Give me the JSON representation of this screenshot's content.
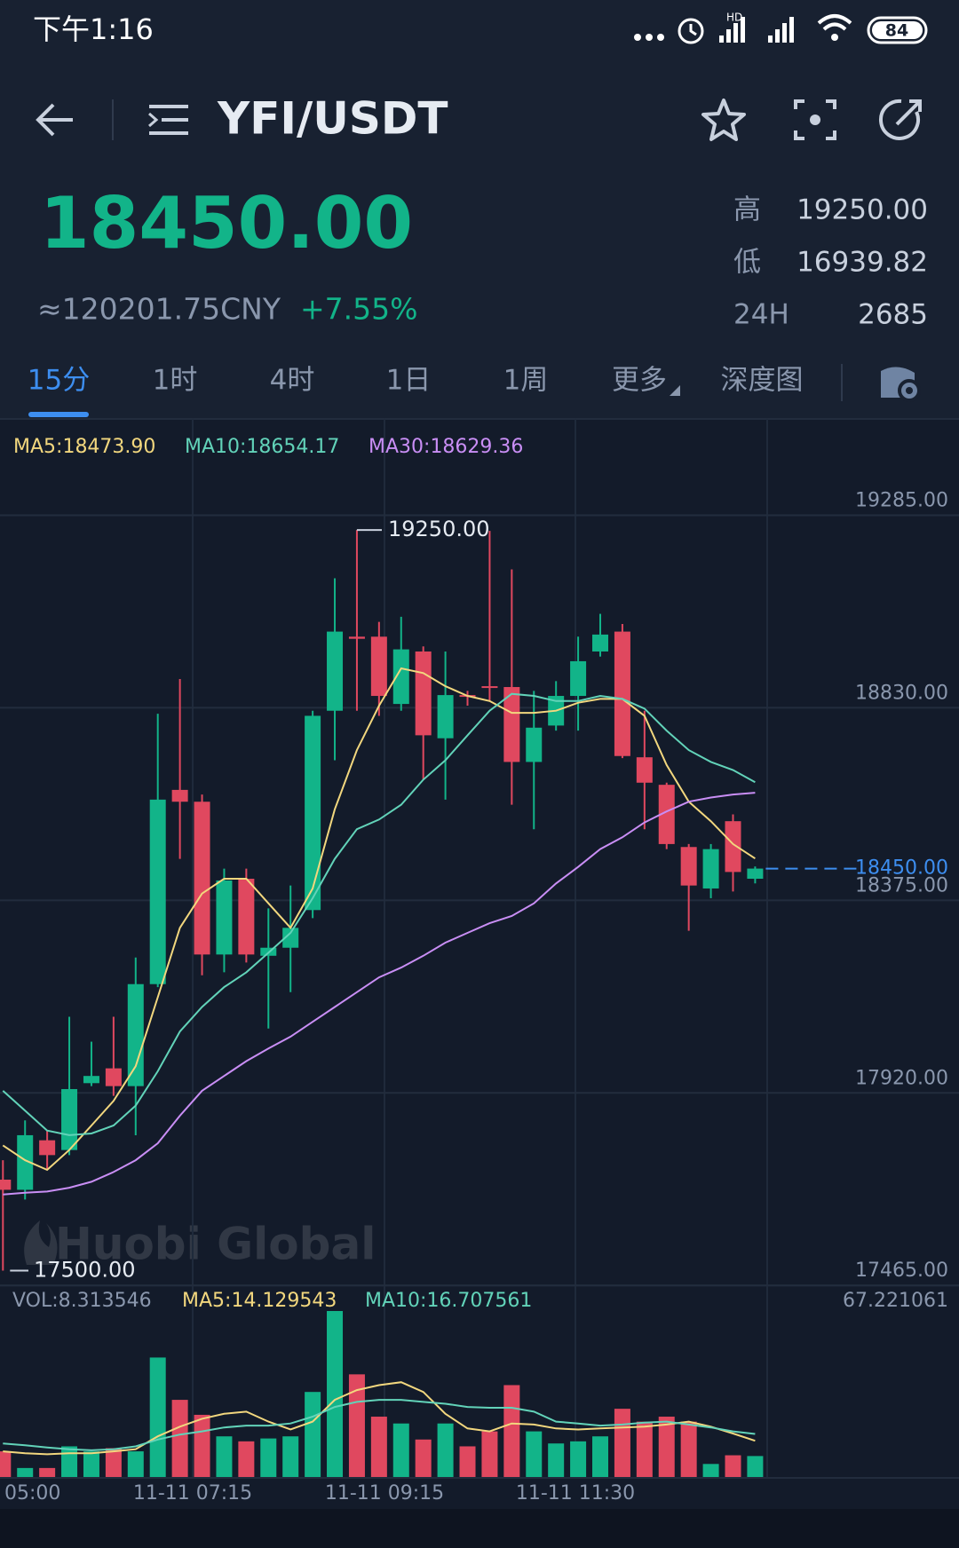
{
  "status": {
    "time": "下午1:16",
    "battery": "84"
  },
  "header": {
    "pair": "YFI/USDT",
    "price": "18450.00",
    "cny": "≈120201.75CNY",
    "change": "+7.55%",
    "stats": [
      {
        "label": "高",
        "value": "19250.00"
      },
      {
        "label": "低",
        "value": "16939.82"
      },
      {
        "label": "24H",
        "value": "2685"
      }
    ]
  },
  "tabs": [
    "15分",
    "1时",
    "4时",
    "1日",
    "1周",
    "更多",
    "深度图"
  ],
  "watermark": "Huobi Global",
  "chart_data": [
    {
      "type": "candlestick",
      "open": [
        17715,
        17691,
        17808,
        17785,
        17943,
        17978,
        17936,
        18177,
        18636,
        18608,
        18247,
        18426,
        18244,
        18263,
        18352,
        18823,
        18998,
        18998,
        18839,
        18963,
        18758,
        18860,
        18881,
        18879,
        18702,
        18788,
        18858,
        18963,
        19010,
        18713,
        18648,
        18501,
        18403,
        18562,
        18426
      ],
      "high": [
        17761,
        17855,
        17831,
        18100,
        18041,
        18100,
        18240,
        18816,
        18898,
        18625,
        18450,
        18450,
        18356,
        18410,
        18823,
        19136,
        19250,
        19033,
        19045,
        18975,
        18963,
        18870,
        19248,
        19157,
        18870,
        18893,
        18998,
        19052,
        19028,
        18823,
        18653,
        18508,
        18508,
        18578,
        18455
      ],
      "low": [
        17500,
        17668,
        17738,
        17773,
        17936,
        17913,
        17820,
        18170,
        18473,
        18198,
        18205,
        18228,
        18072,
        18158,
        18333,
        18706,
        18823,
        18811,
        18823,
        18660,
        18613,
        18835,
        18846,
        18601,
        18543,
        18776,
        18776,
        18951,
        18711,
        18543,
        18496,
        18303,
        18380,
        18396,
        18415
      ],
      "close": [
        17691,
        17820,
        17773,
        17929,
        17960,
        17936,
        18177,
        18613,
        18608,
        18247,
        18422,
        18247,
        18263,
        18310,
        18811,
        19010,
        18993,
        18858,
        18968,
        18765,
        18860,
        18856,
        18877,
        18702,
        18783,
        18858,
        18940,
        19003,
        18716,
        18653,
        18508,
        18410,
        18496,
        18442,
        18450
      ],
      "up_color": "#12b489",
      "down_color": "#e0485f",
      "series": [
        {
          "name": "MA5:18473.90",
          "color": "#f2d77e",
          "values": [
            17796,
            17761,
            17738,
            17785,
            17843,
            17901,
            17983,
            18146,
            18310,
            18391,
            18426,
            18426,
            18368,
            18310,
            18403,
            18590,
            18730,
            18835,
            18923,
            18912,
            18881,
            18858,
            18846,
            18818,
            18818,
            18823,
            18842,
            18851,
            18851,
            18811,
            18695,
            18608,
            18562,
            18508,
            18473.9
          ]
        },
        {
          "name": "MA10:18654.17",
          "color": "#62d3b9",
          "values": [
            17925,
            17878,
            17831,
            17820,
            17824,
            17843,
            17890,
            17971,
            18065,
            18123,
            18170,
            18205,
            18251,
            18298,
            18380,
            18473,
            18543,
            18566,
            18601,
            18660,
            18706,
            18765,
            18823,
            18863,
            18858,
            18846,
            18846,
            18858,
            18851,
            18828,
            18776,
            18730,
            18702,
            18683,
            18654.17
          ]
        },
        {
          "name": "MA30:18629.36",
          "color": "#c98ef5",
          "values": [
            17680,
            17684,
            17687,
            17696,
            17710,
            17733,
            17761,
            17801,
            17866,
            17925,
            17960,
            17995,
            18025,
            18053,
            18088,
            18123,
            18158,
            18193,
            18216,
            18244,
            18275,
            18298,
            18321,
            18338,
            18368,
            18415,
            18454,
            18496,
            18524,
            18559,
            18585,
            18608,
            18618,
            18625,
            18629.36
          ]
        }
      ],
      "ylim": [
        17465,
        19511
      ],
      "yticks": [
        {
          "value": 19285,
          "label": "19285.00"
        },
        {
          "value": 18830,
          "label": "18830.00"
        },
        {
          "value": 18375,
          "label": "18375.00"
        },
        {
          "value": 17920,
          "label": "17920.00"
        },
        {
          "value": 17465,
          "label": "17465.00"
        }
      ],
      "grid": true,
      "high_label": "19250.00",
      "low_label": "17500.00",
      "last_label": "18450.00",
      "last_color": "#3d8ef0"
    },
    {
      "type": "bar",
      "name": "VOL:8.313546",
      "values": [
        10.1,
        3.76,
        3.76,
        12.0,
        10.1,
        11.3,
        10.1,
        45.8,
        29.7,
        24.0,
        15.8,
        13.9,
        15.0,
        15.8,
        32.7,
        63.5,
        39.4,
        23.3,
        20.7,
        14.6,
        20.7,
        12.0,
        17.7,
        35.3,
        17.7,
        13.1,
        13.9,
        15.8,
        26.3,
        21.4,
        23.3,
        21.4,
        5.3,
        8.6,
        8.313546
      ],
      "series": [
        {
          "name": "MA5:14.129543",
          "color": "#f2d77e",
          "values": [
            10.1,
            9.4,
            9.0,
            9.4,
            9.4,
            10.1,
            10.9,
            15.8,
            19.5,
            22.5,
            24.4,
            25.2,
            21.4,
            18.4,
            21.4,
            29.7,
            33.4,
            35.3,
            36.4,
            32.7,
            24.4,
            18.8,
            17.7,
            20.7,
            20.3,
            18.8,
            18.4,
            18.8,
            19.2,
            19.5,
            20.3,
            21.4,
            19.5,
            16.9,
            14.129543
          ]
        },
        {
          "name": "MA10:16.707561",
          "color": "#62d3b9",
          "values": [
            13.1,
            12.4,
            11.6,
            10.9,
            10.5,
            10.9,
            12.0,
            14.6,
            16.5,
            17.7,
            19.2,
            19.9,
            19.9,
            20.7,
            23.3,
            27.0,
            28.9,
            29.7,
            29.7,
            28.9,
            28.2,
            27.0,
            26.7,
            26.7,
            25.2,
            21.4,
            20.7,
            19.9,
            20.3,
            21.0,
            21.4,
            20.3,
            19.2,
            17.7,
            16.707561
          ]
        }
      ],
      "ylim": [
        0,
        67.221061
      ],
      "yticks": [
        67.221061
      ],
      "xlabels": [
        "05:00",
        "11-11 07:15",
        "11-11 09:15",
        "11-11 11:30"
      ]
    }
  ]
}
